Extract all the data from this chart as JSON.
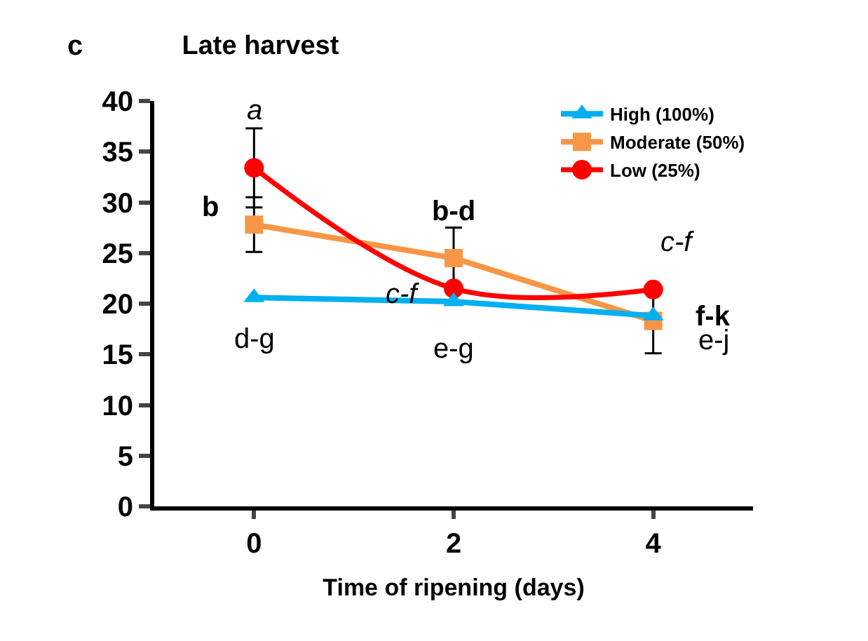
{
  "chart_data": {
    "type": "line",
    "title": "Late harvest",
    "xlabel": "Time of ripening (days)",
    "x": [
      0,
      2,
      4
    ],
    "xlim": [
      -1,
      5
    ],
    "xticks": [
      0,
      2,
      4
    ],
    "ylim": [
      0,
      40
    ],
    "yticks": [
      0,
      5,
      10,
      15,
      20,
      25,
      30,
      35,
      40
    ],
    "grid": false,
    "legend": "top right",
    "series": [
      {
        "name": "High (100%)",
        "color": "#00b0f0",
        "marker": "triangle",
        "values": [
          20.6,
          20.2,
          18.8
        ]
      },
      {
        "name": "Moderate (50%)",
        "color": "#f79646",
        "marker": "square",
        "values": [
          27.8,
          24.5,
          18.3
        ],
        "errors": [
          2.7,
          3.0,
          3.2
        ]
      },
      {
        "name": "Low (25%)",
        "color": "#ff0000",
        "marker": "circle",
        "values": [
          33.4,
          21.5,
          21.4
        ],
        "errors": [
          3.9,
          null,
          null
        ]
      }
    ],
    "annotations": [
      "c",
      "a",
      "b",
      "d-g",
      "b-d",
      "c-f",
      "e-g",
      "c-f",
      "f-k",
      "e-j"
    ]
  }
}
